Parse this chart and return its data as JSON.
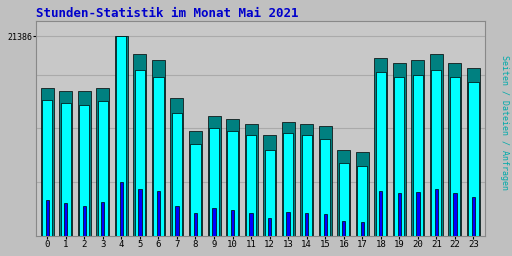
{
  "title": "Stunden-Statistik im Monat Mai 2021",
  "ylabel": "Seiten / Dateien / Anfragen",
  "ymax_label": "21386",
  "ylim_max": 23000,
  "ytick_val": 21386,
  "background_color": "#c0c0c0",
  "plot_bg_color": "#c8c8c8",
  "title_color": "#0000cc",
  "ylabel_color": "#00aaaa",
  "color_cyan": "#00ffff",
  "color_teal": "#008080",
  "color_blue": "#0000ff",
  "bar_edge": "#000000",
  "hours": [
    0,
    1,
    2,
    3,
    4,
    5,
    6,
    7,
    8,
    9,
    10,
    11,
    12,
    13,
    14,
    15,
    16,
    17,
    18,
    19,
    20,
    21,
    22,
    23
  ],
  "seiten": [
    14500,
    14200,
    14000,
    14400,
    21386,
    17800,
    17000,
    13200,
    9800,
    11500,
    11200,
    10800,
    9200,
    11000,
    10800,
    10400,
    7800,
    7500,
    17500,
    17000,
    17200,
    17800,
    17000,
    16500
  ],
  "dateien": [
    15800,
    15500,
    15500,
    15800,
    21386,
    19500,
    18800,
    14800,
    11200,
    12800,
    12500,
    12000,
    10800,
    12200,
    12000,
    11800,
    9200,
    9000,
    19000,
    18500,
    18800,
    19500,
    18500,
    18000
  ],
  "anfragen": [
    3800,
    3500,
    3200,
    3600,
    5800,
    5000,
    4800,
    3200,
    2500,
    3000,
    2800,
    2500,
    1900,
    2600,
    2500,
    2300,
    1600,
    1500,
    4800,
    4600,
    4700,
    5000,
    4600,
    4200
  ],
  "grid_levels": [
    5750,
    11500,
    17250,
    21386
  ]
}
